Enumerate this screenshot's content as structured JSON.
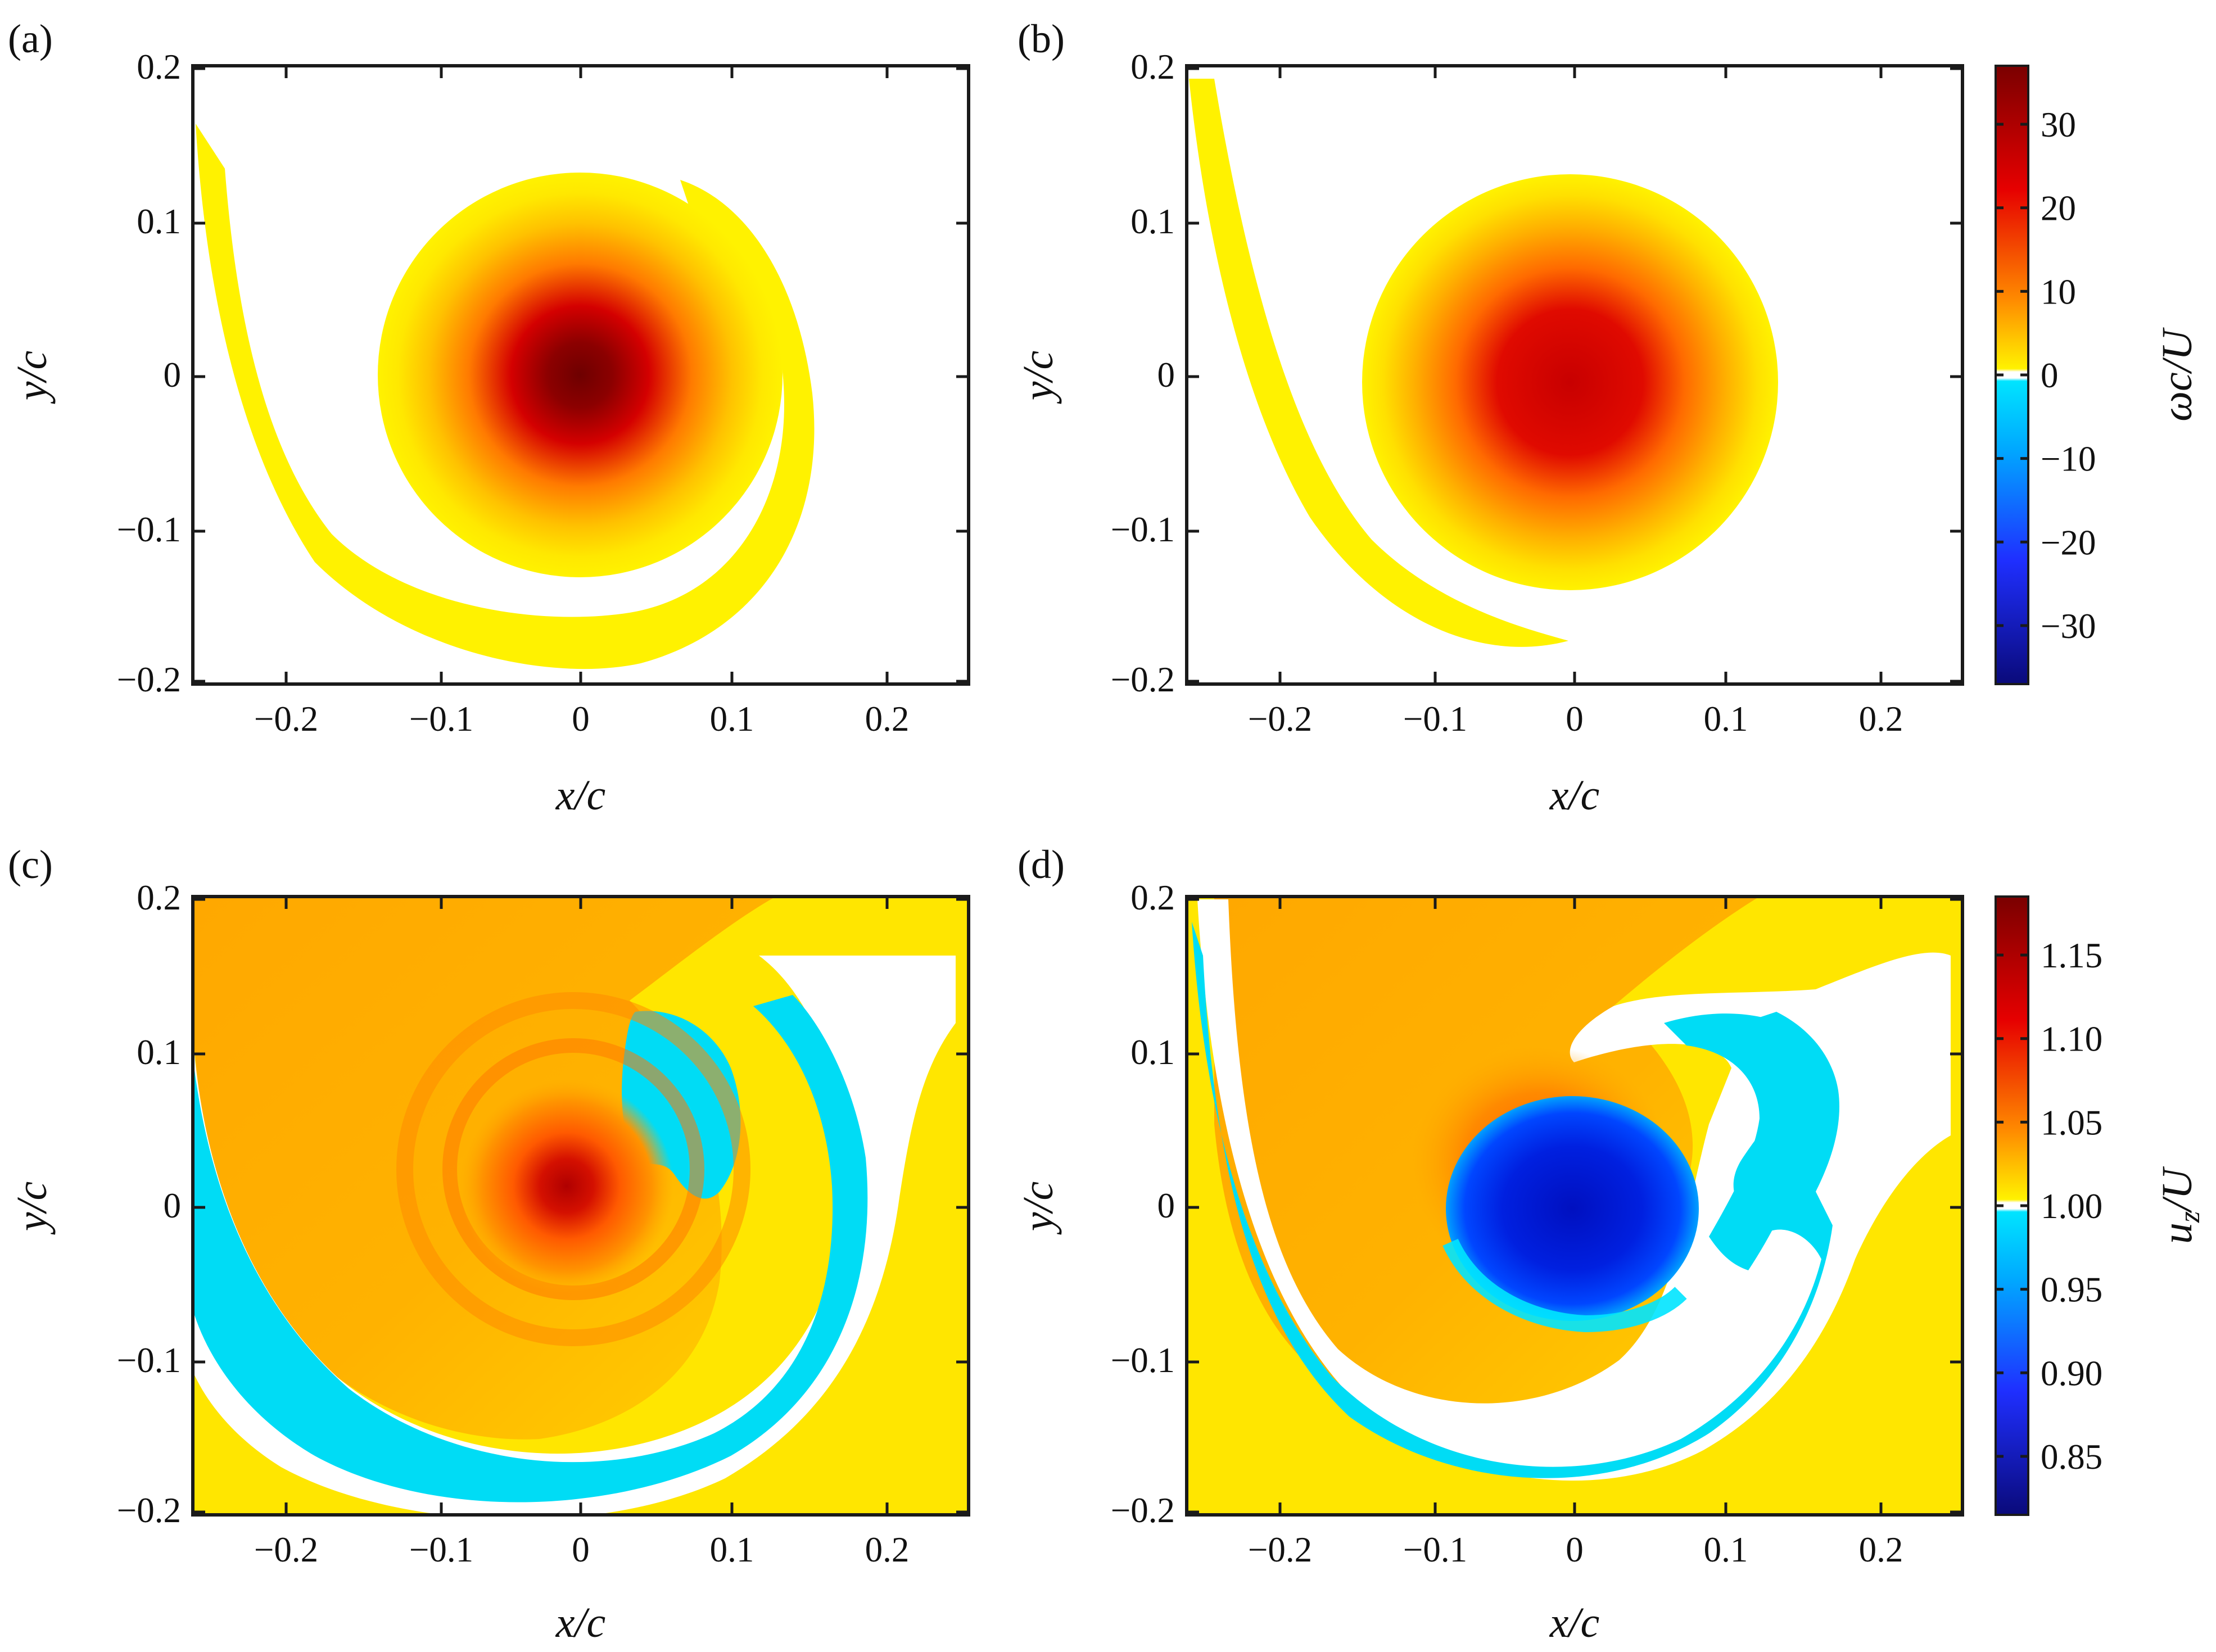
{
  "figure": {
    "colors": {
      "neg_dark": "#0a0a8c",
      "neg_mid": "#1f3cff",
      "neg_light": "#00e4ff",
      "zero_band": "#ffffff",
      "pos_light": "#fff200",
      "pos_orange": "#ffa000",
      "pos_red": "#e60000",
      "pos_dark": "#7a0000"
    }
  },
  "chart_data": [
    {
      "type": "heatmap",
      "panel_label": "(a)",
      "quantity": "vorticity",
      "xlabel": "x/c",
      "ylabel": "y/c",
      "xlim": [
        -0.25,
        0.25
      ],
      "ylim": [
        -0.2,
        0.2
      ],
      "xticks": [
        -0.2,
        -0.1,
        0,
        0.1,
        0.2
      ],
      "xtick_labels": [
        "−0.2",
        "−0.1",
        "0",
        "0.1",
        "0.2"
      ],
      "yticks": [
        -0.2,
        -0.1,
        0,
        0.1,
        0.2
      ],
      "ytick_labels": [
        "−0.2",
        "−0.1",
        "0",
        "0.1",
        "0.2"
      ],
      "features": [
        {
          "kind": "core",
          "x": 0.0,
          "y": 0.0,
          "peak": 37,
          "radius": 0.12
        },
        {
          "kind": "spiral_arm",
          "sign": "positive",
          "level": 3
        }
      ]
    },
    {
      "type": "heatmap",
      "panel_label": "(b)",
      "quantity": "vorticity",
      "xlabel": "x/c",
      "ylabel": "y/c",
      "xlim": [
        -0.25,
        0.25
      ],
      "ylim": [
        -0.2,
        0.2
      ],
      "xticks": [
        -0.2,
        -0.1,
        0,
        0.1,
        0.2
      ],
      "xtick_labels": [
        "−0.2",
        "−0.1",
        "0",
        "0.1",
        "0.2"
      ],
      "yticks": [
        -0.2,
        -0.1,
        0,
        0.1,
        0.2
      ],
      "ytick_labels": [
        "−0.2",
        "−0.1",
        "0",
        "0.1",
        "0.2"
      ],
      "features": [
        {
          "kind": "core",
          "x": -0.005,
          "y": -0.005,
          "peak": 27,
          "radius": 0.13
        },
        {
          "kind": "spiral_arm",
          "sign": "positive",
          "level": 3
        }
      ],
      "colorbar": {
        "label": "ωc/U",
        "range": [
          -37,
          37
        ],
        "ticks": [
          30,
          20,
          10,
          0,
          -10,
          -20,
          -30
        ],
        "tick_labels": [
          "30",
          "20",
          "10",
          "0",
          "−10",
          "−20",
          "−30"
        ]
      }
    },
    {
      "type": "heatmap",
      "panel_label": "(c)",
      "quantity": "axial velocity",
      "xlabel": "x/c",
      "ylabel": "y/c",
      "xlim": [
        -0.25,
        0.25
      ],
      "ylim": [
        -0.2,
        0.2
      ],
      "xticks": [
        -0.2,
        -0.1,
        0,
        0.1,
        0.2
      ],
      "xtick_labels": [
        "−0.2",
        "−0.1",
        "0",
        "0.1",
        "0.2"
      ],
      "yticks": [
        -0.2,
        -0.1,
        0,
        0.1,
        0.2
      ],
      "ytick_labels": [
        "−0.2",
        "−0.1",
        "0",
        "0.1",
        "0.2"
      ],
      "features": [
        {
          "kind": "background",
          "value": 1.02
        },
        {
          "kind": "core",
          "x": -0.01,
          "y": 0.0,
          "peak": 1.15,
          "radius": 0.1
        },
        {
          "kind": "spiral_arm",
          "sign": "deficit",
          "level": 0.975
        },
        {
          "kind": "inner_blob",
          "sign": "deficit",
          "level": 0.975
        }
      ]
    },
    {
      "type": "heatmap",
      "panel_label": "(d)",
      "quantity": "axial velocity",
      "xlabel": "x/c",
      "ylabel": "y/c",
      "xlim": [
        -0.25,
        0.25
      ],
      "ylim": [
        -0.2,
        0.2
      ],
      "xticks": [
        -0.2,
        -0.1,
        0,
        0.1,
        0.2
      ],
      "xtick_labels": [
        "−0.2",
        "−0.1",
        "0",
        "0.1",
        "0.2"
      ],
      "yticks": [
        -0.2,
        -0.1,
        0,
        0.1,
        0.2
      ],
      "ytick_labels": [
        "−0.2",
        "−0.1",
        "0",
        "0.1",
        "0.2"
      ],
      "features": [
        {
          "kind": "background",
          "value": 1.02
        },
        {
          "kind": "core",
          "x": 0.0,
          "y": -0.005,
          "peak": 0.9,
          "radius": 0.065
        },
        {
          "kind": "spiral_arm",
          "sign": "deficit",
          "level": 0.975
        }
      ],
      "colorbar": {
        "label": "u_z/U",
        "label_main": "u",
        "label_sub": "z",
        "label_rest": "/U",
        "range": [
          0.815,
          1.185
        ],
        "ticks": [
          1.15,
          1.1,
          1.05,
          1.0,
          0.95,
          0.9,
          0.85
        ],
        "tick_labels": [
          "1.15",
          "1.10",
          "1.05",
          "1.00",
          "0.95",
          "0.90",
          "0.85"
        ]
      }
    }
  ]
}
